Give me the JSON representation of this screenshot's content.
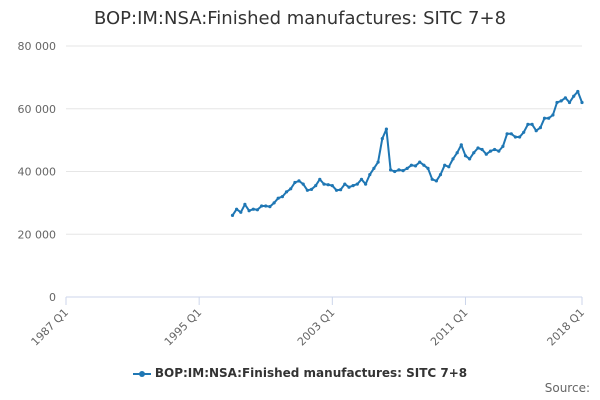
{
  "chart_data": {
    "type": "line",
    "title": "BOP:IM:NSA:Finished manufactures: SITC 7+8",
    "xlabel": "",
    "ylabel": "",
    "ylim": [
      0,
      80000
    ],
    "yticks": [
      "0",
      "20 000",
      "40 000",
      "60 000",
      "80 000"
    ],
    "xlim": [
      1987.0,
      2018.0
    ],
    "xticks": [
      {
        "label": "1987 Q1",
        "value": 1987.0
      },
      {
        "label": "1995 Q1",
        "value": 1995.0
      },
      {
        "label": "2003 Q1",
        "value": 2003.0
      },
      {
        "label": "2011 Q1",
        "value": 2011.0
      },
      {
        "label": "2018 Q1",
        "value": 2018.0
      }
    ],
    "grid": "horizontal",
    "legend": "bottom-center",
    "series": [
      {
        "name": "BOP:IM:NSA:Finished manufactures: SITC 7+8",
        "color": "#1f77b4",
        "x": [
          1997.0,
          1997.25,
          1997.5,
          1997.75,
          1998.0,
          1998.25,
          1998.5,
          1998.75,
          1999.0,
          1999.25,
          1999.5,
          1999.75,
          2000.0,
          2000.25,
          2000.5,
          2000.75,
          2001.0,
          2001.25,
          2001.5,
          2001.75,
          2002.0,
          2002.25,
          2002.5,
          2002.75,
          2003.0,
          2003.25,
          2003.5,
          2003.75,
          2004.0,
          2004.25,
          2004.5,
          2004.75,
          2005.0,
          2005.25,
          2005.5,
          2005.75,
          2006.0,
          2006.25,
          2006.5,
          2006.75,
          2007.0,
          2007.25,
          2007.5,
          2007.75,
          2008.0,
          2008.25,
          2008.5,
          2008.75,
          2009.0,
          2009.25,
          2009.5,
          2009.75,
          2010.0,
          2010.25,
          2010.5,
          2010.75,
          2011.0,
          2011.25,
          2011.5,
          2011.75,
          2012.0,
          2012.25,
          2012.5,
          2012.75,
          2013.0,
          2013.25,
          2013.5,
          2013.75,
          2014.0,
          2014.25,
          2014.5,
          2014.75,
          2015.0,
          2015.25,
          2015.5,
          2015.75,
          2016.0,
          2016.25,
          2016.5,
          2016.75,
          2017.0,
          2017.25,
          2017.5,
          2017.75,
          2018.0
        ],
        "values": [
          26000,
          28000,
          27000,
          29500,
          27500,
          28000,
          27800,
          29000,
          29000,
          28800,
          30000,
          31500,
          32000,
          33500,
          34500,
          36500,
          37000,
          36000,
          34000,
          34300,
          35500,
          37500,
          36000,
          35800,
          35500,
          34000,
          34200,
          36000,
          35000,
          35500,
          36000,
          37500,
          36000,
          39000,
          41000,
          43000,
          50500,
          53500,
          40500,
          40000,
          40500,
          40300,
          41000,
          42000,
          41800,
          43000,
          42000,
          41000,
          37500,
          37000,
          39000,
          42000,
          41500,
          44000,
          46000,
          48500,
          45000,
          44000,
          46000,
          47500,
          47000,
          45500,
          46500,
          47000,
          46500,
          48000,
          52000,
          52000,
          51000,
          51000,
          52500,
          55000,
          55000,
          53000,
          54000,
          57000,
          57000,
          58000,
          62000,
          62500,
          63500,
          62000,
          64000,
          65500,
          62000
        ]
      }
    ]
  },
  "source_label": "Source:"
}
